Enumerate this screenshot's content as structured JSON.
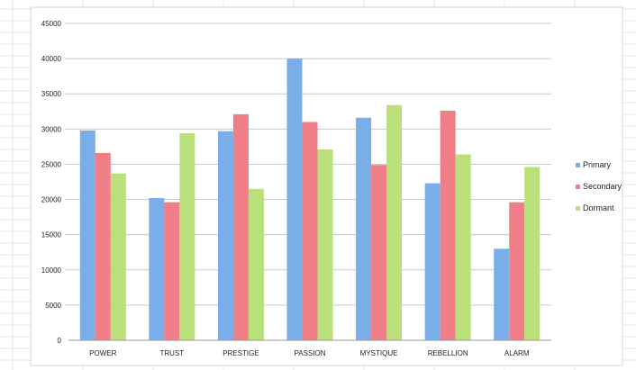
{
  "colors": {
    "primary": "#79aee8",
    "secondary": "#f07e86",
    "dormant": "#b9e07a",
    "gridline": "#c9c9c9",
    "sheet_grid": "#e4e4e4"
  },
  "chart_data": {
    "type": "bar",
    "categories": [
      "POWER",
      "TRUST",
      "PRESTIGE",
      "PASSION",
      "MYSTIQUE",
      "REBELLION",
      "ALARM"
    ],
    "series": [
      {
        "name": "Primary",
        "values": [
          29800,
          20200,
          29700,
          40000,
          31600,
          22300,
          13000
        ]
      },
      {
        "name": "Secondary",
        "values": [
          26600,
          19600,
          32100,
          31000,
          24900,
          32600,
          19600
        ]
      },
      {
        "name": "Dormant",
        "values": [
          23700,
          29400,
          21500,
          27100,
          33400,
          26400,
          24600
        ]
      }
    ],
    "ylim": [
      0,
      45000
    ],
    "yticks": [
      0,
      5000,
      10000,
      15000,
      20000,
      25000,
      30000,
      35000,
      40000,
      45000
    ],
    "grid": true,
    "legend_position": "right"
  }
}
